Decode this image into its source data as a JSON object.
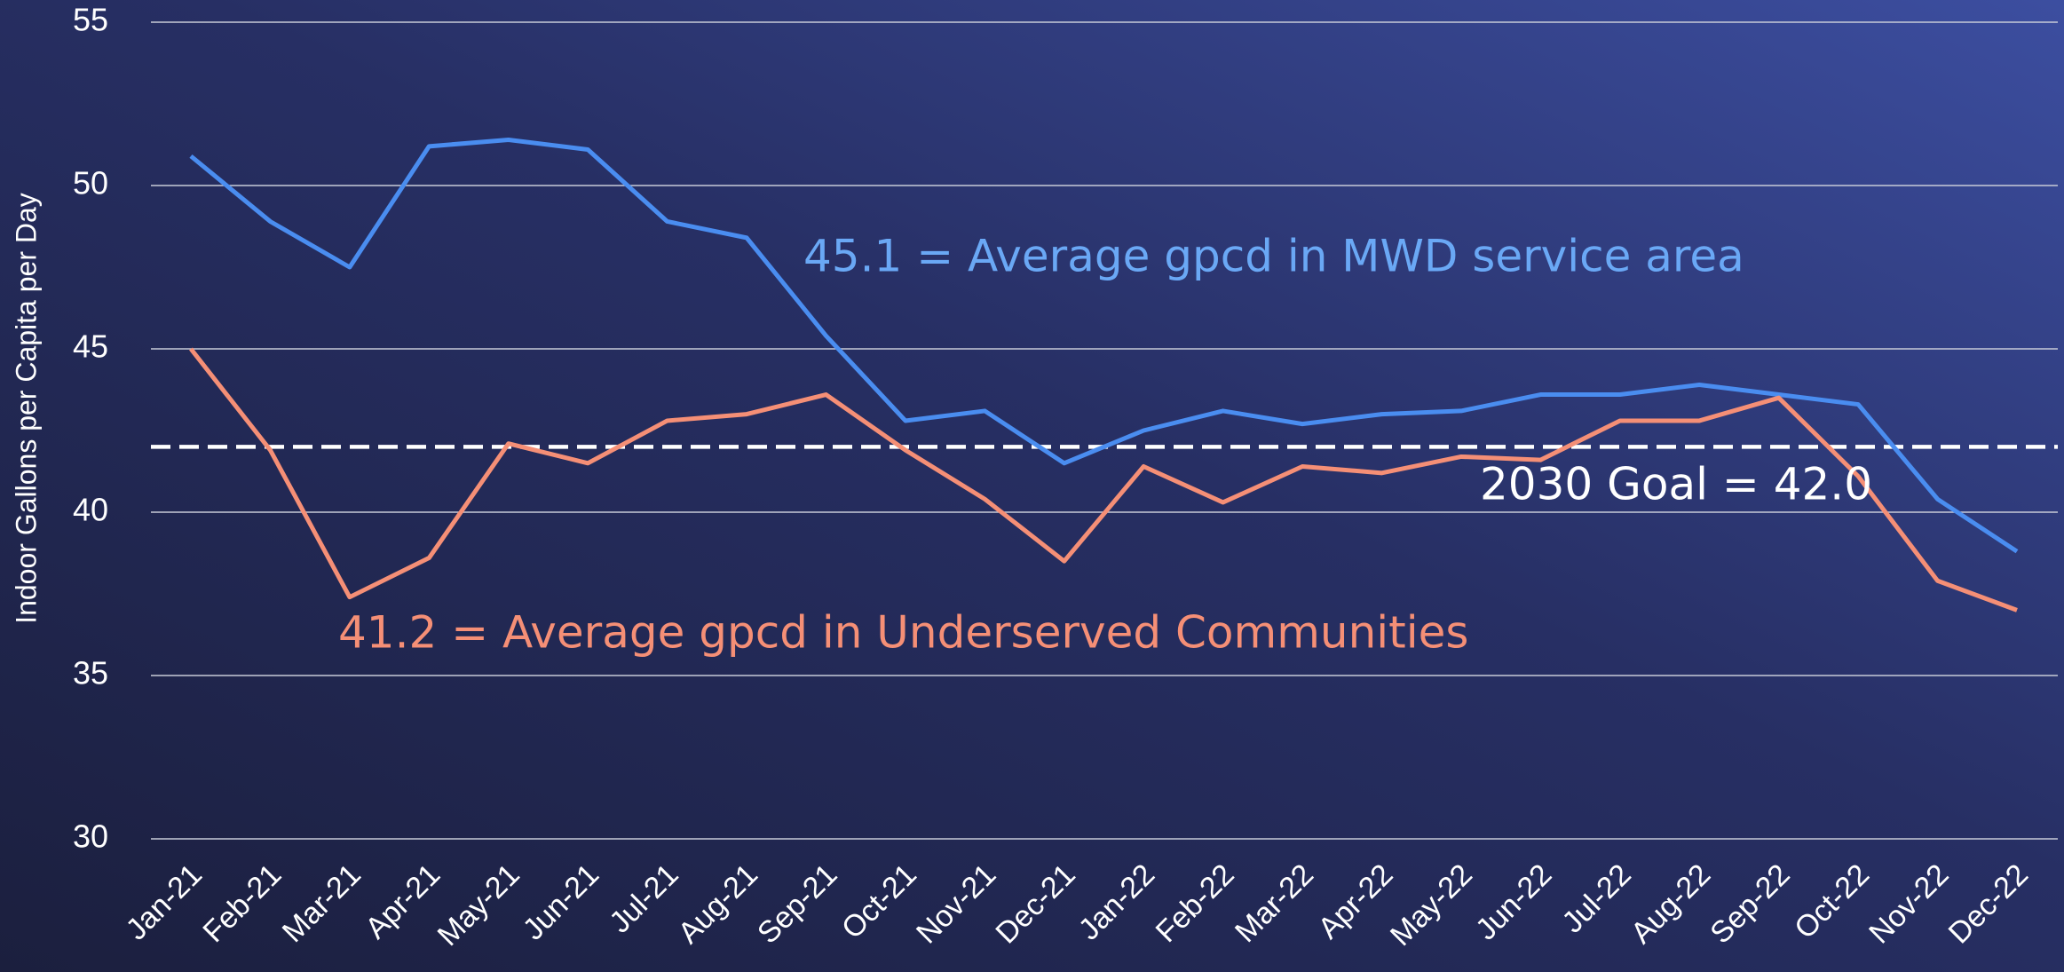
{
  "chart_data": {
    "type": "line",
    "ylabel": "Indoor Gallons per Capita per Day",
    "categories": [
      "Jan-21",
      "Feb-21",
      "Mar-21",
      "Apr-21",
      "May-21",
      "Jun-21",
      "Jul-21",
      "Aug-21",
      "Sep-21",
      "Oct-21",
      "Nov-21",
      "Dec-21",
      "Jan-22",
      "Feb-22",
      "Mar-22",
      "Apr-22",
      "May-22",
      "Jun-22",
      "Jul-22",
      "Aug-22",
      "Sep-22",
      "Oct-22",
      "Nov-22",
      "Dec-22"
    ],
    "series": [
      {
        "color": "#4a8df0",
        "values": [
          50.9,
          48.9,
          47.5,
          51.2,
          51.4,
          51.1,
          48.9,
          48.4,
          45.4,
          42.8,
          43.1,
          41.5,
          42.5,
          43.1,
          42.7,
          43.0,
          43.1,
          43.6,
          43.6,
          43.9,
          43.6,
          43.3,
          40.4,
          38.8
        ]
      },
      {
        "color": "#f58f76",
        "values": [
          45.0,
          41.9,
          37.4,
          38.6,
          42.1,
          41.5,
          42.8,
          43.0,
          43.6,
          41.9,
          40.4,
          38.5,
          41.4,
          40.3,
          41.4,
          41.2,
          41.7,
          41.6,
          42.8,
          42.8,
          43.5,
          41.1,
          37.9,
          37.0
        ]
      }
    ],
    "ylim": [
      30,
      55
    ],
    "yticks": [
      30,
      35,
      40,
      45,
      50,
      55
    ],
    "grid": true,
    "reference_line": {
      "value": 42,
      "color": "#ffffff",
      "dashed": true
    },
    "annotations": [
      {
        "text": "45.1 = Average gpcd in MWD service area",
        "color": "#6aa8f5"
      },
      {
        "text": "41.2 = Average gpcd in Underserved Communities",
        "color": "#f58f76"
      },
      {
        "text": "2030 Goal = 42.0",
        "color": "#ffffff"
      }
    ]
  }
}
